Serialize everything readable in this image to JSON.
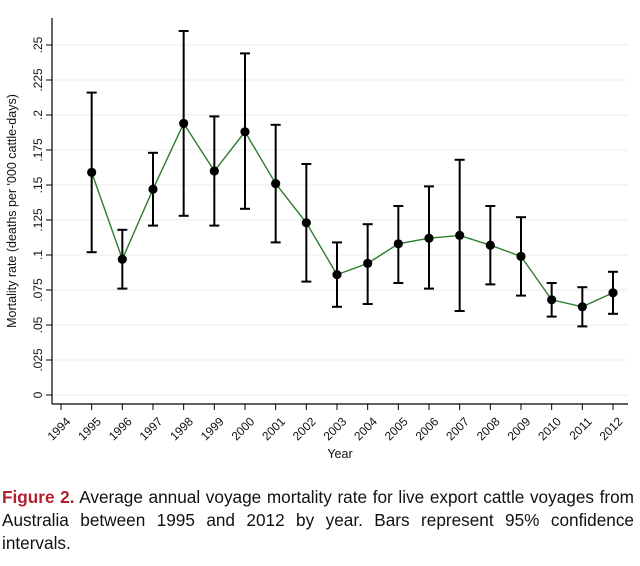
{
  "chart_data": {
    "type": "line",
    "xlabel": "Year",
    "ylabel": "Mortality rate (deaths per '000 cattle-days)",
    "ylim": [
      0,
      0.265
    ],
    "xlim": [
      1994,
      2012
    ],
    "x_ticks": [
      "1994",
      "1995",
      "1996",
      "1997",
      "1998",
      "1999",
      "2000",
      "2001",
      "2002",
      "2003",
      "2004",
      "2005",
      "2006",
      "2007",
      "2008",
      "2009",
      "2010",
      "2011",
      "2012"
    ],
    "y_ticks": [
      {
        "value": 0,
        "label": "0"
      },
      {
        "value": 0.025,
        "label": ".025"
      },
      {
        "value": 0.05,
        "label": ".05"
      },
      {
        "value": 0.075,
        "label": ".075"
      },
      {
        "value": 0.1,
        "label": ".1"
      },
      {
        "value": 0.125,
        "label": ".125"
      },
      {
        "value": 0.15,
        "label": ".15"
      },
      {
        "value": 0.175,
        "label": ".175"
      },
      {
        "value": 0.2,
        "label": ".2"
      },
      {
        "value": 0.225,
        "label": ".225"
      },
      {
        "value": 0.25,
        "label": ".25"
      }
    ],
    "grid": "horizontal",
    "line_color": "#2e7d2e",
    "marker_color": "#000000",
    "series": [
      {
        "name": "Mortality rate",
        "points": [
          {
            "x": 1995,
            "y": 0.159,
            "lo": 0.102,
            "hi": 0.216
          },
          {
            "x": 1996,
            "y": 0.097,
            "lo": 0.076,
            "hi": 0.118
          },
          {
            "x": 1997,
            "y": 0.147,
            "lo": 0.121,
            "hi": 0.173
          },
          {
            "x": 1998,
            "y": 0.194,
            "lo": 0.128,
            "hi": 0.26
          },
          {
            "x": 1999,
            "y": 0.16,
            "lo": 0.121,
            "hi": 0.199
          },
          {
            "x": 2000,
            "y": 0.188,
            "lo": 0.133,
            "hi": 0.244
          },
          {
            "x": 2001,
            "y": 0.151,
            "lo": 0.109,
            "hi": 0.193
          },
          {
            "x": 2002,
            "y": 0.123,
            "lo": 0.081,
            "hi": 0.165
          },
          {
            "x": 2003,
            "y": 0.086,
            "lo": 0.063,
            "hi": 0.109
          },
          {
            "x": 2004,
            "y": 0.094,
            "lo": 0.065,
            "hi": 0.122
          },
          {
            "x": 2005,
            "y": 0.108,
            "lo": 0.08,
            "hi": 0.135
          },
          {
            "x": 2006,
            "y": 0.112,
            "lo": 0.076,
            "hi": 0.149
          },
          {
            "x": 2007,
            "y": 0.114,
            "lo": 0.06,
            "hi": 0.168
          },
          {
            "x": 2008,
            "y": 0.107,
            "lo": 0.079,
            "hi": 0.135
          },
          {
            "x": 2009,
            "y": 0.099,
            "lo": 0.071,
            "hi": 0.127
          },
          {
            "x": 2010,
            "y": 0.068,
            "lo": 0.056,
            "hi": 0.08
          },
          {
            "x": 2011,
            "y": 0.063,
            "lo": 0.049,
            "hi": 0.077
          },
          {
            "x": 2012,
            "y": 0.073,
            "lo": 0.058,
            "hi": 0.088
          }
        ]
      }
    ]
  },
  "caption": {
    "label": "Figure 2.",
    "text": " Average annual voyage mortality rate for live export cattle voyages from Australia between 1995 and 2012 by year. Bars represent 95% confidence intervals."
  }
}
